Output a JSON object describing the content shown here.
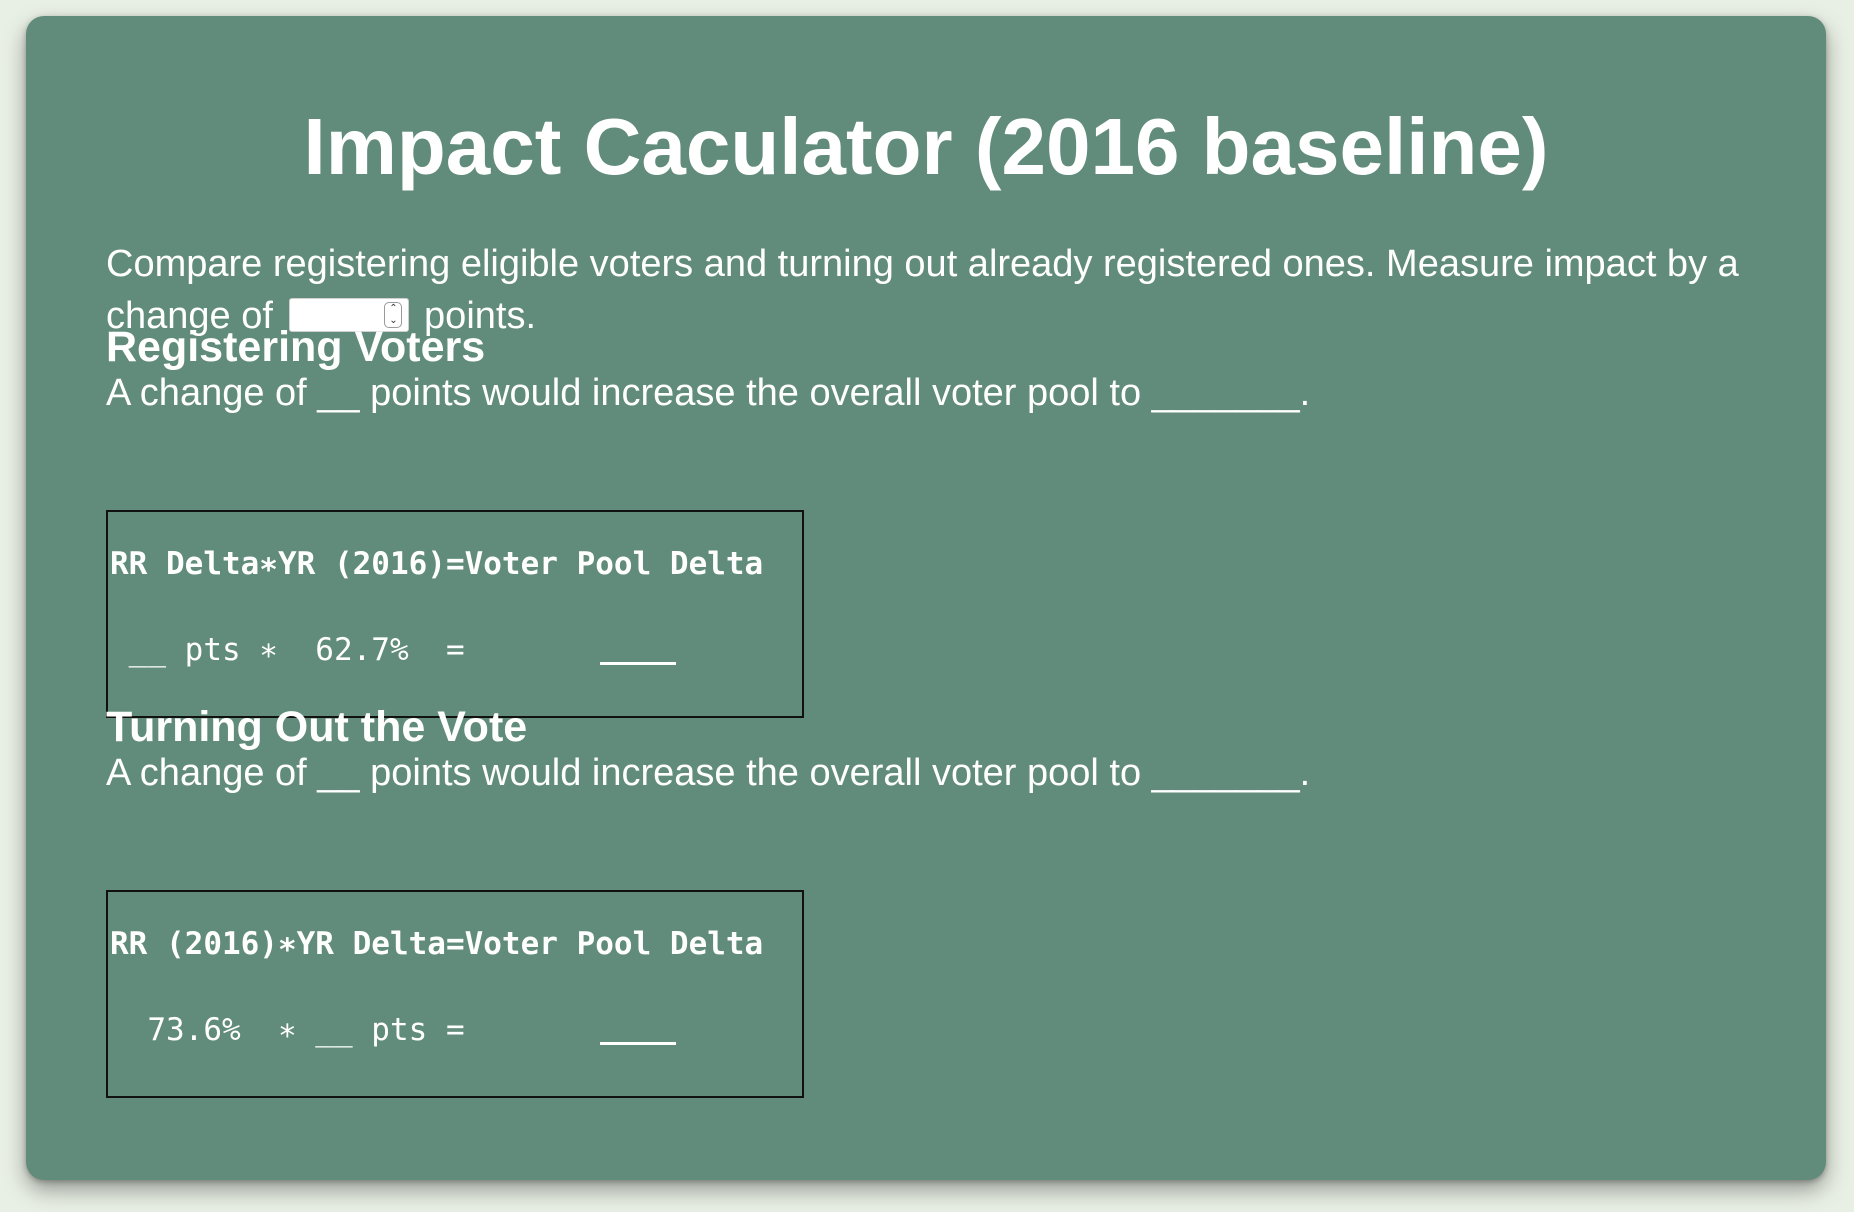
{
  "title": "Impact Caculator (2016 baseline)",
  "intro": {
    "text_before": "Compare registering eligible voters and turning out already registered ones. Measure impact by a change of",
    "input_value": "",
    "text_after": "points."
  },
  "registering": {
    "heading": "Registering Voters",
    "sentence": "A change of __ points would increase the overall voter pool to _______.",
    "formula_header": "RR Delta∗YR (2016)=Voter Pool Delta",
    "formula_row": " __ pts ∗  62.7%  ="
  },
  "turnout": {
    "heading": "Turning Out the Vote",
    "sentence": "A change of __ points would increase the overall voter pool to _______.",
    "formula_header": "RR (2016)∗YR Delta=Voter Pool Delta",
    "formula_row": "  73.6%  ∗ __ pts ="
  },
  "colors": {
    "card_background": "#618c7b",
    "page_background": "#e8efe4",
    "text": "#ffffff"
  }
}
